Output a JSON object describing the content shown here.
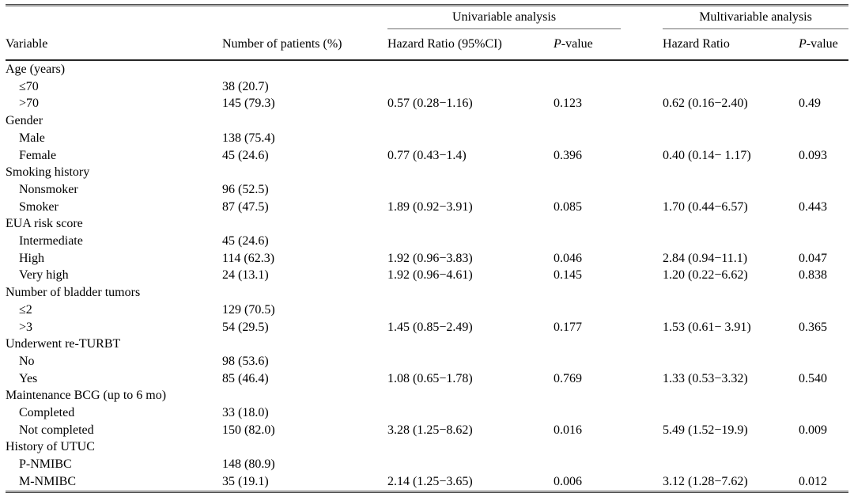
{
  "colors": {
    "background": "#ffffff",
    "text": "#000000",
    "rule_heavy": "#3c3c3c",
    "rule_group": "#6e6e6e"
  },
  "table": {
    "group_headers": {
      "univariable": "Univariable analysis",
      "multivariable": "Multivariable analysis"
    },
    "columns": {
      "variable": "Variable",
      "patients": "Number of patients (%)",
      "uni_hr": "Hazard Ratio (95%CI)",
      "multi_hr": "Hazard Ratio",
      "p_italic": "P",
      "p_rest": "-value"
    },
    "rows": [
      {
        "label": "Age (years)",
        "group": true,
        "patients": "",
        "uni_hr": "",
        "uni_p": "",
        "multi_hr": "",
        "multi_p": ""
      },
      {
        "label": "≤70",
        "group": false,
        "patients": "38 (20.7)",
        "uni_hr": "",
        "uni_p": "",
        "multi_hr": "",
        "multi_p": ""
      },
      {
        "label": ">70",
        "group": false,
        "patients": "145 (79.3)",
        "uni_hr": "0.57 (0.28−1.16)",
        "uni_p": "0.123",
        "multi_hr": "0.62 (0.16−2.40)",
        "multi_p": "0.49"
      },
      {
        "label": "Gender",
        "group": true,
        "patients": "",
        "uni_hr": "",
        "uni_p": "",
        "multi_hr": "",
        "multi_p": ""
      },
      {
        "label": "Male",
        "group": false,
        "patients": "138 (75.4)",
        "uni_hr": "",
        "uni_p": "",
        "multi_hr": "",
        "multi_p": ""
      },
      {
        "label": "Female",
        "group": false,
        "patients": "45 (24.6)",
        "uni_hr": "0.77 (0.43−1.4)",
        "uni_p": "0.396",
        "multi_hr": "0.40 (0.14− 1.17)",
        "multi_p": "0.093"
      },
      {
        "label": "Smoking history",
        "group": true,
        "patients": "",
        "uni_hr": "",
        "uni_p": "",
        "multi_hr": "",
        "multi_p": ""
      },
      {
        "label": "Nonsmoker",
        "group": false,
        "patients": "96 (52.5)",
        "uni_hr": "",
        "uni_p": "",
        "multi_hr": "",
        "multi_p": ""
      },
      {
        "label": "Smoker",
        "group": false,
        "patients": "87 (47.5)",
        "uni_hr": "1.89 (0.92−3.91)",
        "uni_p": "0.085",
        "multi_hr": "1.70 (0.44−6.57)",
        "multi_p": "0.443"
      },
      {
        "label": "EUA risk score",
        "group": true,
        "patients": "",
        "uni_hr": "",
        "uni_p": "",
        "multi_hr": "",
        "multi_p": ""
      },
      {
        "label": "Intermediate",
        "group": false,
        "patients": "45 (24.6)",
        "uni_hr": "",
        "uni_p": "",
        "multi_hr": "",
        "multi_p": ""
      },
      {
        "label": "High",
        "group": false,
        "patients": "114 (62.3)",
        "uni_hr": "1.92 (0.96−3.83)",
        "uni_p": "0.046",
        "multi_hr": "2.84 (0.94−11.1)",
        "multi_p": "0.047"
      },
      {
        "label": "Very high",
        "group": false,
        "patients": "24 (13.1)",
        "uni_hr": "1.92 (0.96−4.61)",
        "uni_p": "0.145",
        "multi_hr": "1.20 (0.22−6.62)",
        "multi_p": "0.838"
      },
      {
        "label": "Number of bladder tumors",
        "group": true,
        "patients": "",
        "uni_hr": "",
        "uni_p": "",
        "multi_hr": "",
        "multi_p": ""
      },
      {
        "label": "≤2",
        "group": false,
        "patients": "129 (70.5)",
        "uni_hr": "",
        "uni_p": "",
        "multi_hr": "",
        "multi_p": ""
      },
      {
        "label": ">3",
        "group": false,
        "patients": "54 (29.5)",
        "uni_hr": "1.45 (0.85−2.49)",
        "uni_p": "0.177",
        "multi_hr": "1.53 (0.61− 3.91)",
        "multi_p": "0.365"
      },
      {
        "label": "Underwent re-TURBT",
        "group": true,
        "patients": "",
        "uni_hr": "",
        "uni_p": "",
        "multi_hr": "",
        "multi_p": ""
      },
      {
        "label": "No",
        "group": false,
        "patients": "98 (53.6)",
        "uni_hr": "",
        "uni_p": "",
        "multi_hr": "",
        "multi_p": ""
      },
      {
        "label": "Yes",
        "group": false,
        "patients": "85 (46.4)",
        "uni_hr": "1.08 (0.65−1.78)",
        "uni_p": "0.769",
        "multi_hr": "1.33 (0.53−3.32)",
        "multi_p": "0.540"
      },
      {
        "label": "Maintenance BCG (up to 6 mo)",
        "group": true,
        "patients": "",
        "uni_hr": "",
        "uni_p": "",
        "multi_hr": "",
        "multi_p": ""
      },
      {
        "label": "Completed",
        "group": false,
        "patients": "33 (18.0)",
        "uni_hr": "",
        "uni_p": "",
        "multi_hr": "",
        "multi_p": ""
      },
      {
        "label": "Not completed",
        "group": false,
        "patients": "150 (82.0)",
        "uni_hr": "3.28 (1.25−8.62)",
        "uni_p": "0.016",
        "multi_hr": "5.49 (1.52−19.9)",
        "multi_p": "0.009"
      },
      {
        "label": "History of UTUC",
        "group": true,
        "patients": "",
        "uni_hr": "",
        "uni_p": "",
        "multi_hr": "",
        "multi_p": ""
      },
      {
        "label": "P-NMIBC",
        "group": false,
        "patients": "148 (80.9)",
        "uni_hr": "",
        "uni_p": "",
        "multi_hr": "",
        "multi_p": ""
      },
      {
        "label": "M-NMIBC",
        "group": false,
        "patients": "35 (19.1)",
        "uni_hr": "2.14 (1.25−3.65)",
        "uni_p": "0.006",
        "multi_hr": "3.12 (1.28−7.62)",
        "multi_p": "0.012"
      }
    ]
  }
}
